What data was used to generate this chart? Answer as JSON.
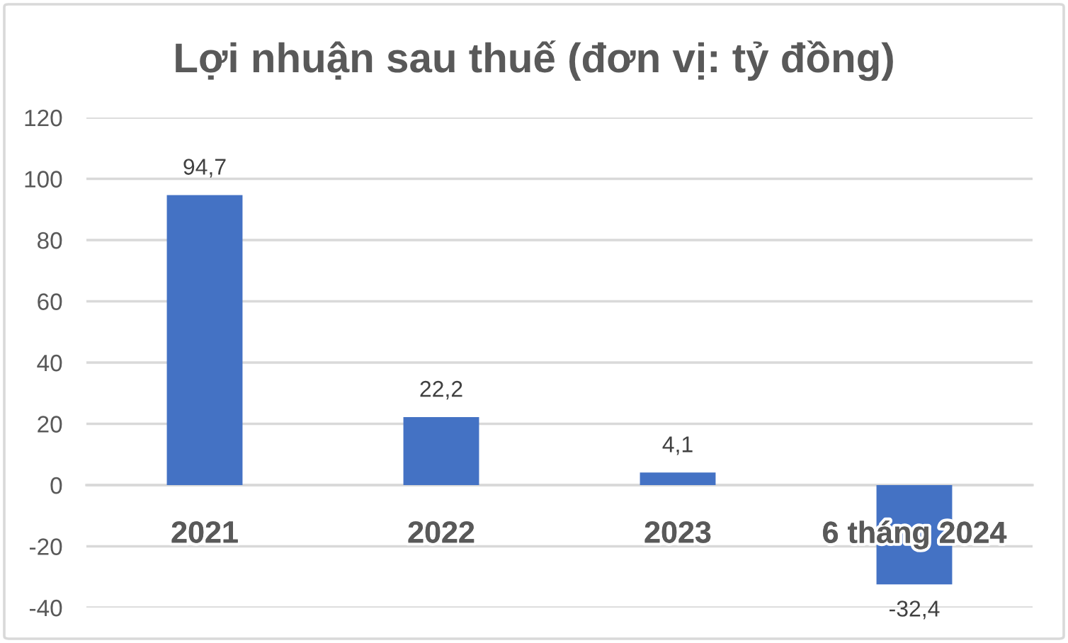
{
  "chart_data": {
    "type": "bar",
    "title": "Lợi nhuận sau thuế (đơn vị: tỷ đồng)",
    "categories": [
      "2021",
      "2022",
      "2023",
      "6 tháng 2024"
    ],
    "values": [
      94.7,
      22.2,
      4.1,
      -32.4
    ],
    "color": "#4472c4",
    "value_labels": [
      "94,7",
      "22,2",
      "4,1",
      "-32,4"
    ],
    "ylim": [
      -40,
      120
    ],
    "yticks": [
      -40,
      -20,
      0,
      20,
      40,
      60,
      80,
      100,
      120
    ],
    "grid": "y"
  }
}
